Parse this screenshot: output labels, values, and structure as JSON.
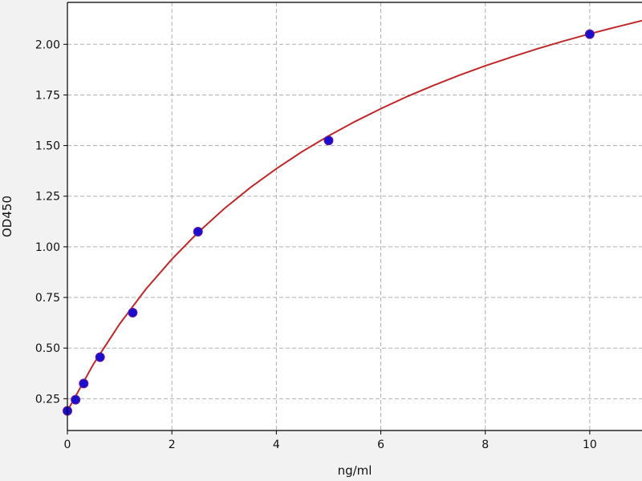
{
  "chart_data": {
    "type": "scatter",
    "title": "",
    "xlabel": "ng/ml",
    "ylabel": "OD450",
    "xlim": [
      0,
      11
    ],
    "ylim": [
      0.093,
      2.207
    ],
    "xticks": [
      0,
      2,
      4,
      6,
      8,
      10
    ],
    "xtick_labels": [
      "0",
      "2",
      "4",
      "6",
      "8",
      "10"
    ],
    "yticks": [
      0.25,
      0.5,
      0.75,
      1.0,
      1.25,
      1.5,
      1.75,
      2.0
    ],
    "ytick_labels": [
      "0.25",
      "0.50",
      "0.75",
      "1.00",
      "1.25",
      "1.50",
      "1.75",
      "2.00"
    ],
    "grid": true,
    "series": [
      {
        "kind": "points",
        "color": "#1a0dcc",
        "x": [
          0,
          0.156,
          0.312,
          0.625,
          1.25,
          2.5,
          5,
          10
        ],
        "y": [
          0.19,
          0.245,
          0.325,
          0.455,
          0.675,
          1.075,
          1.525,
          2.05
        ]
      },
      {
        "kind": "fit-curve",
        "color": "#c0282a",
        "x": [
          0,
          0.5,
          1,
          1.5,
          2,
          2.5,
          3,
          3.5,
          4,
          4.5,
          5,
          5.5,
          6,
          6.5,
          7,
          7.5,
          8,
          8.5,
          9,
          9.5,
          10,
          10.5,
          11
        ],
        "y": [
          0.19,
          0.421,
          0.619,
          0.79,
          0.939,
          1.071,
          1.188,
          1.292,
          1.386,
          1.471,
          1.548,
          1.618,
          1.682,
          1.742,
          1.796,
          1.847,
          1.894,
          1.937,
          1.978,
          2.016,
          2.052,
          2.085,
          2.117
        ]
      }
    ]
  }
}
